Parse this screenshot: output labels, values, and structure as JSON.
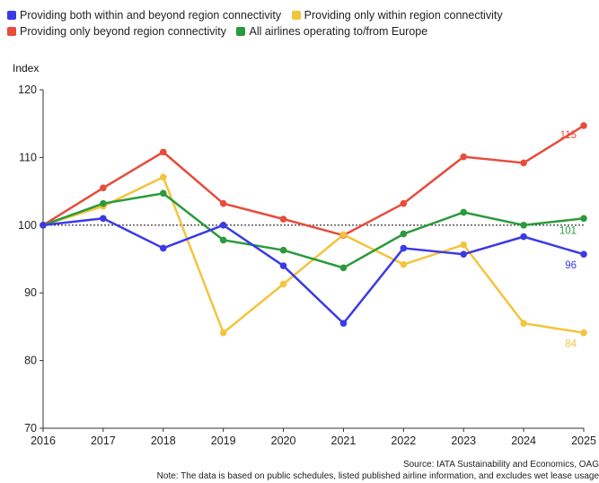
{
  "chart_data": {
    "type": "line",
    "ylabel": "Index",
    "ylim": [
      70,
      120
    ],
    "yticks": [
      70,
      80,
      90,
      100,
      110,
      120
    ],
    "x": [
      "2016",
      "2017",
      "2018",
      "2019",
      "2020",
      "2021",
      "2022",
      "2023",
      "2024",
      "2025"
    ],
    "reference_line": 100,
    "grid": false,
    "legend_position": "top",
    "series": [
      {
        "name": "Providing both within and beyond region connectivity",
        "color": "#3a3ae6",
        "values": [
          100,
          101,
          96.6,
          100,
          94,
          85.5,
          96.6,
          95.7,
          98.3,
          95.7
        ],
        "end_label": "96"
      },
      {
        "name": "Providing only within region connectivity",
        "color": "#f4c43c",
        "values": [
          100,
          102.8,
          107.1,
          84.1,
          91.3,
          98.6,
          94.2,
          97.1,
          85.5,
          84.1
        ],
        "end_label": "84"
      },
      {
        "name": "Providing only beyond region connectivity",
        "color": "#e74c3c",
        "values": [
          100,
          105.5,
          110.8,
          103.2,
          100.9,
          98.5,
          103.2,
          110.1,
          109.2,
          114.7
        ],
        "end_label": "115"
      },
      {
        "name": "All airlines operating to/from Europe",
        "color": "#2a9a3a",
        "values": [
          100,
          103.2,
          104.7,
          97.8,
          96.3,
          93.7,
          98.7,
          101.9,
          100,
          101
        ],
        "end_label": "101"
      }
    ]
  },
  "footer": {
    "source": "Source: IATA Sustainability and Economics, OAG",
    "note": "Note: The data is based on public schedules, listed published airline information, and excludes wet lease usage"
  }
}
